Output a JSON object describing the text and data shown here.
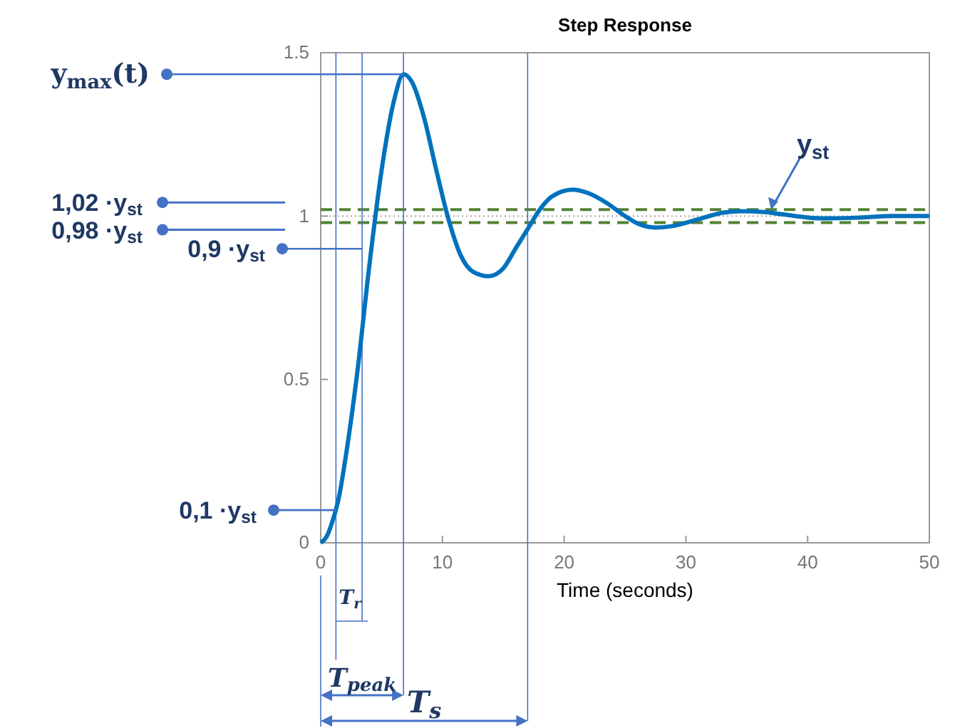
{
  "chart_data": {
    "type": "line",
    "title": "Step Response",
    "xlabel": "Time (seconds)",
    "x": [
      0,
      0.5,
      1,
      1.5,
      2,
      3,
      4,
      5,
      6,
      6.8,
      7.5,
      8.5,
      9.5,
      10.5,
      11.5,
      12.5,
      13.8,
      15,
      16,
      17,
      18,
      19,
      20.7,
      22,
      23.5,
      25,
      26,
      27.5,
      29,
      31,
      33,
      34.5,
      36.5,
      38,
      41.2,
      44,
      47,
      50
    ],
    "series": [
      {
        "color": "#0072bd",
        "values": [
          0,
          0.02,
          0.07,
          0.14,
          0.25,
          0.52,
          0.85,
          1.14,
          1.35,
          1.434,
          1.41,
          1.3,
          1.14,
          0.99,
          0.88,
          0.83,
          0.816,
          0.84,
          0.9,
          0.96,
          1.02,
          1.06,
          1.081,
          1.07,
          1.04,
          1.0,
          0.978,
          0.965,
          0.97,
          0.99,
          1.01,
          1.015,
          1.012,
          1.005,
          0.993,
          0.995,
          1.0,
          1.0
        ]
      }
    ],
    "xlim": [
      0,
      50
    ],
    "xticks": [
      0,
      10,
      20,
      30,
      40,
      50
    ],
    "ylim": [
      0,
      1.5
    ],
    "yticks": [
      0,
      0.5,
      1,
      1.5
    ],
    "grid": false,
    "marker": "none",
    "line_style": "solid",
    "ref_lines": [
      {
        "axis": "y",
        "value": 1.02,
        "color": "#548235",
        "line_style": "dashed"
      },
      {
        "axis": "y",
        "value": 0.98,
        "color": "#548235",
        "line_style": "dashed"
      },
      {
        "axis": "y",
        "value": 1,
        "color": "#999999",
        "line_style": "dotted"
      },
      {
        "axis": "x",
        "value": 1.25,
        "color": "#4472c4",
        "line_style": "solid"
      },
      {
        "axis": "x",
        "value": 3.4,
        "label": "T$_{r}$",
        "color": "#4472c4",
        "line_style": "solid"
      },
      {
        "axis": "x",
        "value": 6.8,
        "label": "T$_{peak}$",
        "color": "#4472c4",
        "line_style": "solid"
      },
      {
        "axis": "x",
        "value": 17,
        "label": "T$_{s}$",
        "color": "#4472c4",
        "line_style": "solid"
      }
    ],
    "annotations": [
      {
        "text": "y$_{max}$(t)",
        "x": 6.8,
        "y": 1.434
      },
      {
        "text": "0,9 ·y$_{st}$",
        "x": 3.4,
        "y": 0.9
      },
      {
        "text": "0,1 ·y$_{st}$",
        "x": 1.25,
        "y": 0.1
      },
      {
        "text": "y$_{st}$",
        "x": 37,
        "y": 1.01
      },
      "1,02 ·y$_{st}$",
      "0,98 ·y$_{st}$"
    ]
  }
}
